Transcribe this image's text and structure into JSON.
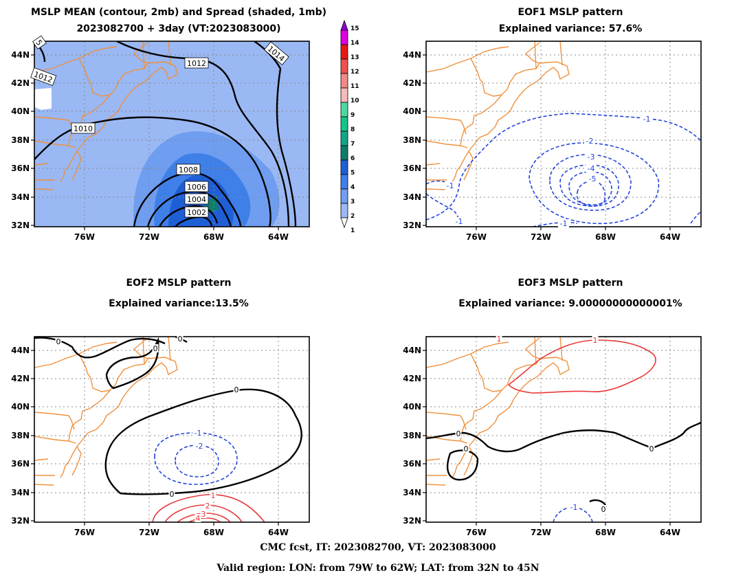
{
  "panel1": {
    "title_line1": "MSLP MEAN (contour, 2mb) and Spread (shaded, 1mb)",
    "title_line2": "2023082700 + 3day (VT:2023083000)",
    "contour_labels": [
      "1012",
      "1014",
      "1012",
      "1010",
      "1008",
      "1006",
      "1004",
      "1002",
      "5"
    ]
  },
  "panel2": {
    "title_line1": "EOF1 MSLP pattern",
    "title_line2": "Explained variance: 57.6%",
    "contour_labels": [
      "-1",
      "-2",
      "-3",
      "-4",
      "-5",
      "-1",
      "-1",
      "-1"
    ]
  },
  "panel3": {
    "title_line1": "EOF2 MSLP pattern",
    "title_line2": "Explained variance:13.5%",
    "contour_labels": [
      "0",
      "0",
      "0",
      "0",
      "0",
      "-1",
      "-2",
      "1",
      "2",
      "3",
      "4"
    ]
  },
  "panel4": {
    "title_line1": "EOF3 MSLP pattern",
    "title_line2": "Explained variance: 9.00000000000001%",
    "contour_labels": [
      "1",
      "1",
      "0",
      "0",
      "0",
      "0",
      "-1"
    ]
  },
  "axes": {
    "lat_labels": [
      "44N",
      "42N",
      "40N",
      "38N",
      "36N",
      "34N",
      "32N"
    ],
    "lon_labels": [
      "76W",
      "72W",
      "68W",
      "64W"
    ]
  },
  "colorbar": {
    "labels": [
      "15",
      "14",
      "13",
      "12",
      "11",
      "10",
      "9",
      "8",
      "7",
      "6",
      "5",
      "4",
      "3",
      "2",
      "1"
    ],
    "colors": [
      "#ffffff",
      "#9ab8f3",
      "#6f9df0",
      "#3f7fe8",
      "#1f5fd6",
      "#0f7d6b",
      "#12a58a",
      "#16c48a",
      "#4ed8a0",
      "#f6b8b8",
      "#f08a8a",
      "#f05050",
      "#e81818",
      "#e000e0",
      "#9000d8"
    ]
  },
  "colors": {
    "coast": "#f0903c",
    "grid": "#888888",
    "negative": "#2244dd",
    "positive": "#e83838",
    "mean_contour": "#000000"
  },
  "footer": {
    "line1": "CMC fcst, IT: 2023082700, VT: 2023083000",
    "line2": "Valid region: LON: from 79W to 62W; LAT: from 32N to 45N"
  }
}
